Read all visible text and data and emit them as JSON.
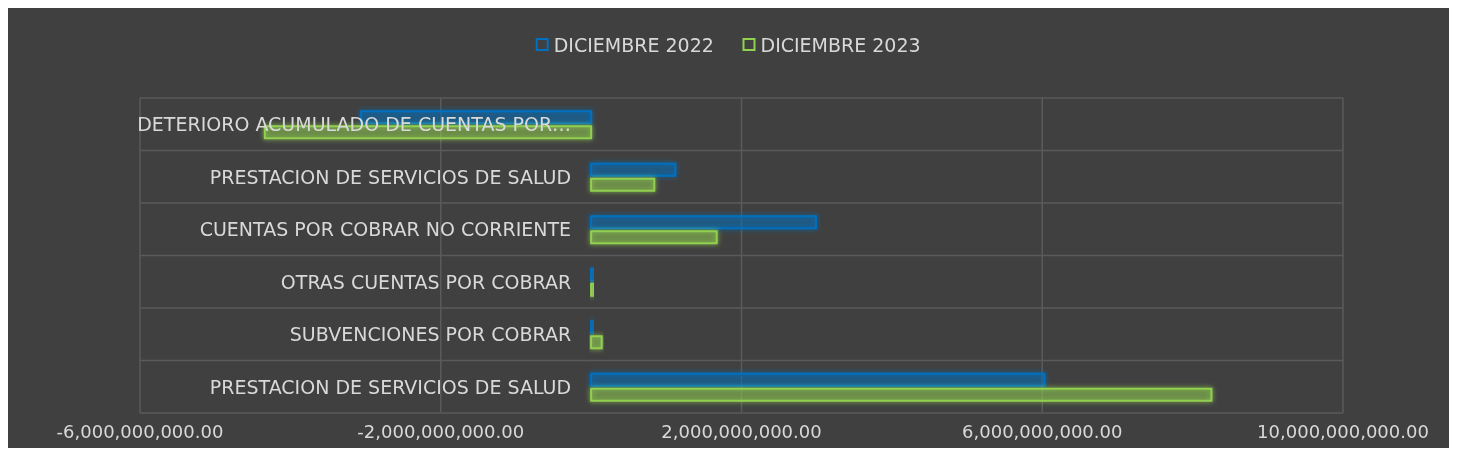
{
  "chart_data": {
    "type": "bar",
    "orientation": "horizontal",
    "categories": [
      "DETERIORO ACUMULADO DE CUENTAS POR…",
      "PRESTACION DE SERVICIOS DE SALUD",
      "CUENTAS POR COBRAR NO CORRIENTE",
      "OTRAS CUENTAS POR COBRAR",
      "SUBVENCIONES POR COBRAR",
      "PRESTACION DE SERVICIOS DE SALUD"
    ],
    "series": [
      {
        "name": "DICIEMBRE 2022",
        "color": "#0070c0",
        "values": [
          -3060000000,
          1120000000,
          2990000000,
          30000000,
          30000000,
          6030000000
        ]
      },
      {
        "name": "DICIEMBRE 2023",
        "color": "#92d050",
        "values": [
          -4340000000,
          840000000,
          1670000000,
          30000000,
          140000000,
          8250000000
        ]
      }
    ],
    "xlim": [
      -6000000000,
      10000000000
    ],
    "xticks": [
      {
        "value": -6000000000,
        "label": "-6,000,000,000.00"
      },
      {
        "value": -2000000000,
        "label": "-2,000,000,000.00"
      },
      {
        "value": 2000000000,
        "label": "2,000,000,000.00"
      },
      {
        "value": 6000000000,
        "label": "6,000,000,000.00"
      },
      {
        "value": 10000000000,
        "label": "10,000,000,000.00"
      }
    ],
    "grid": true,
    "legend": "top"
  }
}
